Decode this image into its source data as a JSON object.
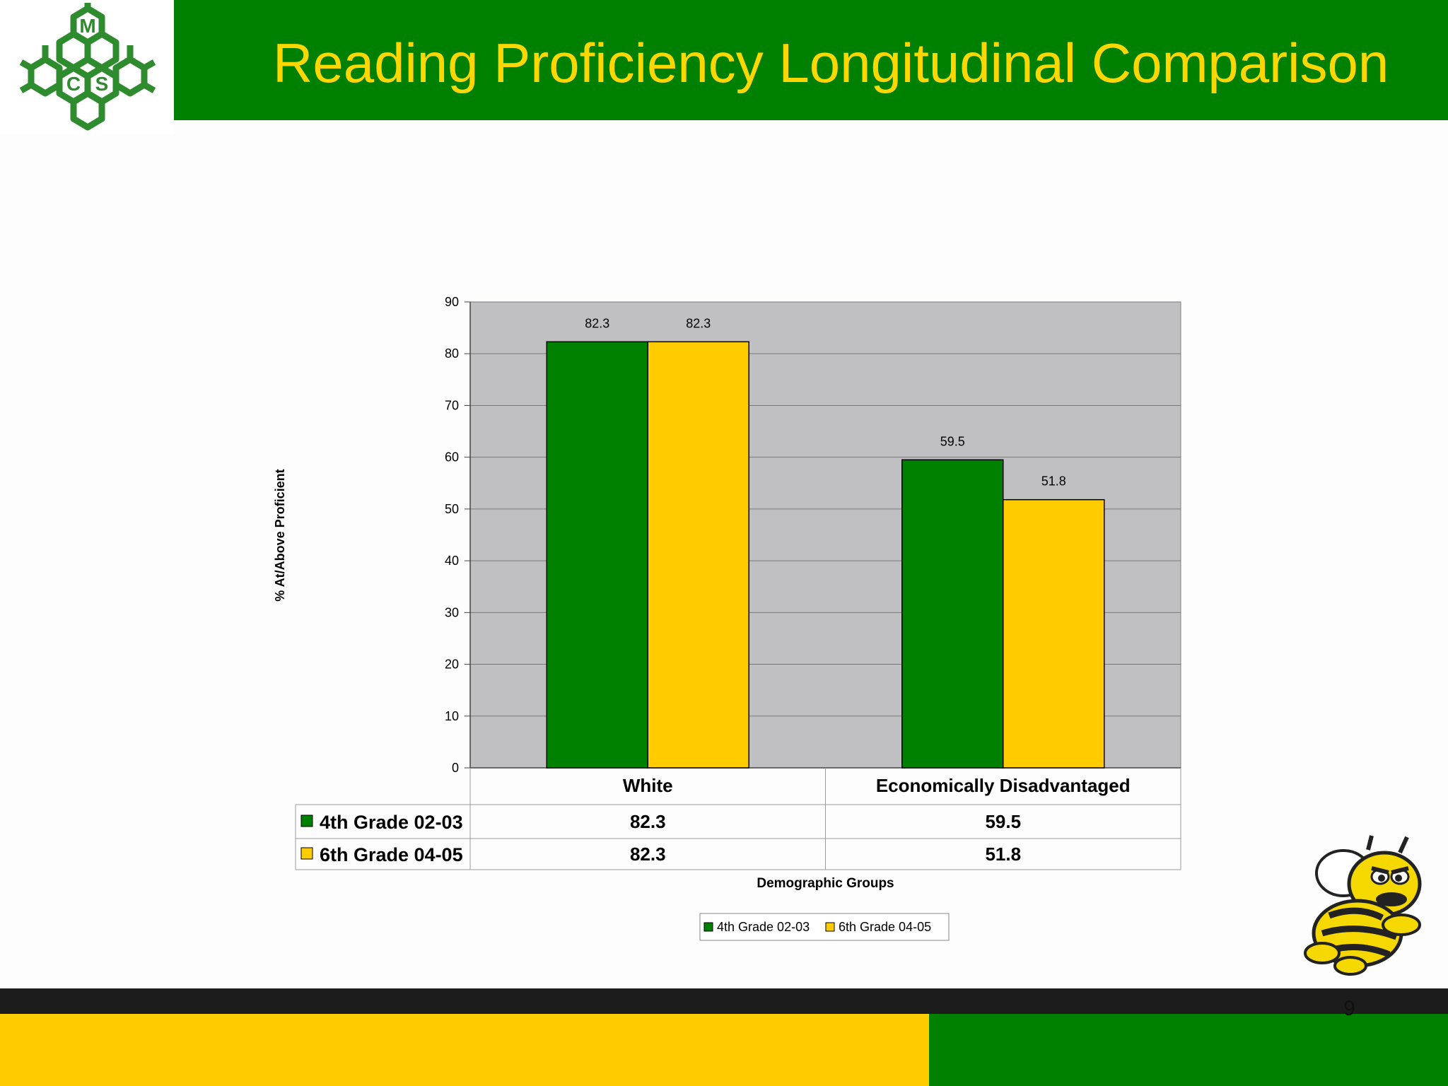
{
  "header": {
    "title": "Reading Proficiency Longitudinal Comparison",
    "logo_letters": [
      "M",
      "C",
      "S"
    ]
  },
  "colors": {
    "brand_green": "#008000",
    "brand_yellow": "#ffcc00",
    "title_yellow": "#ffd700",
    "plot_bg": "#c0bfc2"
  },
  "chart_data": {
    "type": "bar",
    "categories": [
      "White",
      "Economically Disadvantaged"
    ],
    "series": [
      {
        "name": "4th Grade 02-03",
        "values": [
          82.3,
          59.5
        ],
        "color": "#008000"
      },
      {
        "name": "6th Grade 04-05",
        "values": [
          82.3,
          51.8
        ],
        "color": "#ffcc00"
      }
    ],
    "xlabel": "Demographic Groups",
    "ylabel": "% At/Above Proficient",
    "ylim": [
      0,
      90
    ],
    "yticks": [
      0,
      10,
      20,
      30,
      40,
      50,
      60,
      70,
      80,
      90
    ],
    "grid": true,
    "legend": "bottom-center",
    "data_table": true
  },
  "footer": {
    "page_number": "9"
  },
  "mascot_icon": "bee-mascot-icon"
}
